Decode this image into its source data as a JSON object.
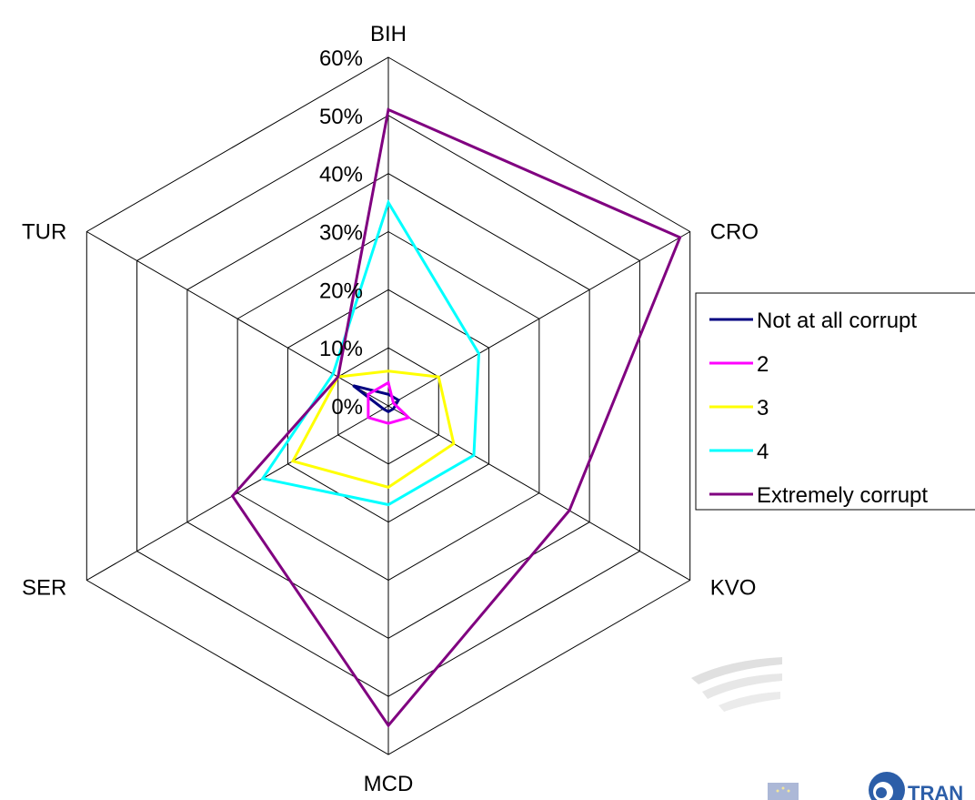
{
  "chart_data": {
    "type": "radar",
    "categories": [
      "BIH",
      "CRO",
      "KVO",
      "MCD",
      "SER",
      "TUR"
    ],
    "yticks": [
      "0%",
      "10%",
      "20%",
      "30%",
      "40%",
      "50%",
      "60%"
    ],
    "ylim": [
      0,
      60
    ],
    "series": [
      {
        "name": "Not at all corrupt",
        "color": "#000080",
        "values": [
          2,
          2,
          1,
          1,
          1,
          7
        ]
      },
      {
        "name": "2",
        "color": "#FF00FF",
        "values": [
          4,
          1,
          4,
          3,
          4,
          4
        ]
      },
      {
        "name": "3",
        "color": "#FFFF00",
        "values": [
          6,
          10,
          13,
          14,
          19,
          10
        ]
      },
      {
        "name": "4",
        "color": "#00FFFF",
        "values": [
          35,
          18,
          17,
          17,
          25,
          11
        ]
      },
      {
        "name": "Extremely corrupt",
        "color": "#800080",
        "values": [
          51,
          58,
          36,
          55,
          31,
          10
        ]
      }
    ],
    "legend_position": "right"
  }
}
